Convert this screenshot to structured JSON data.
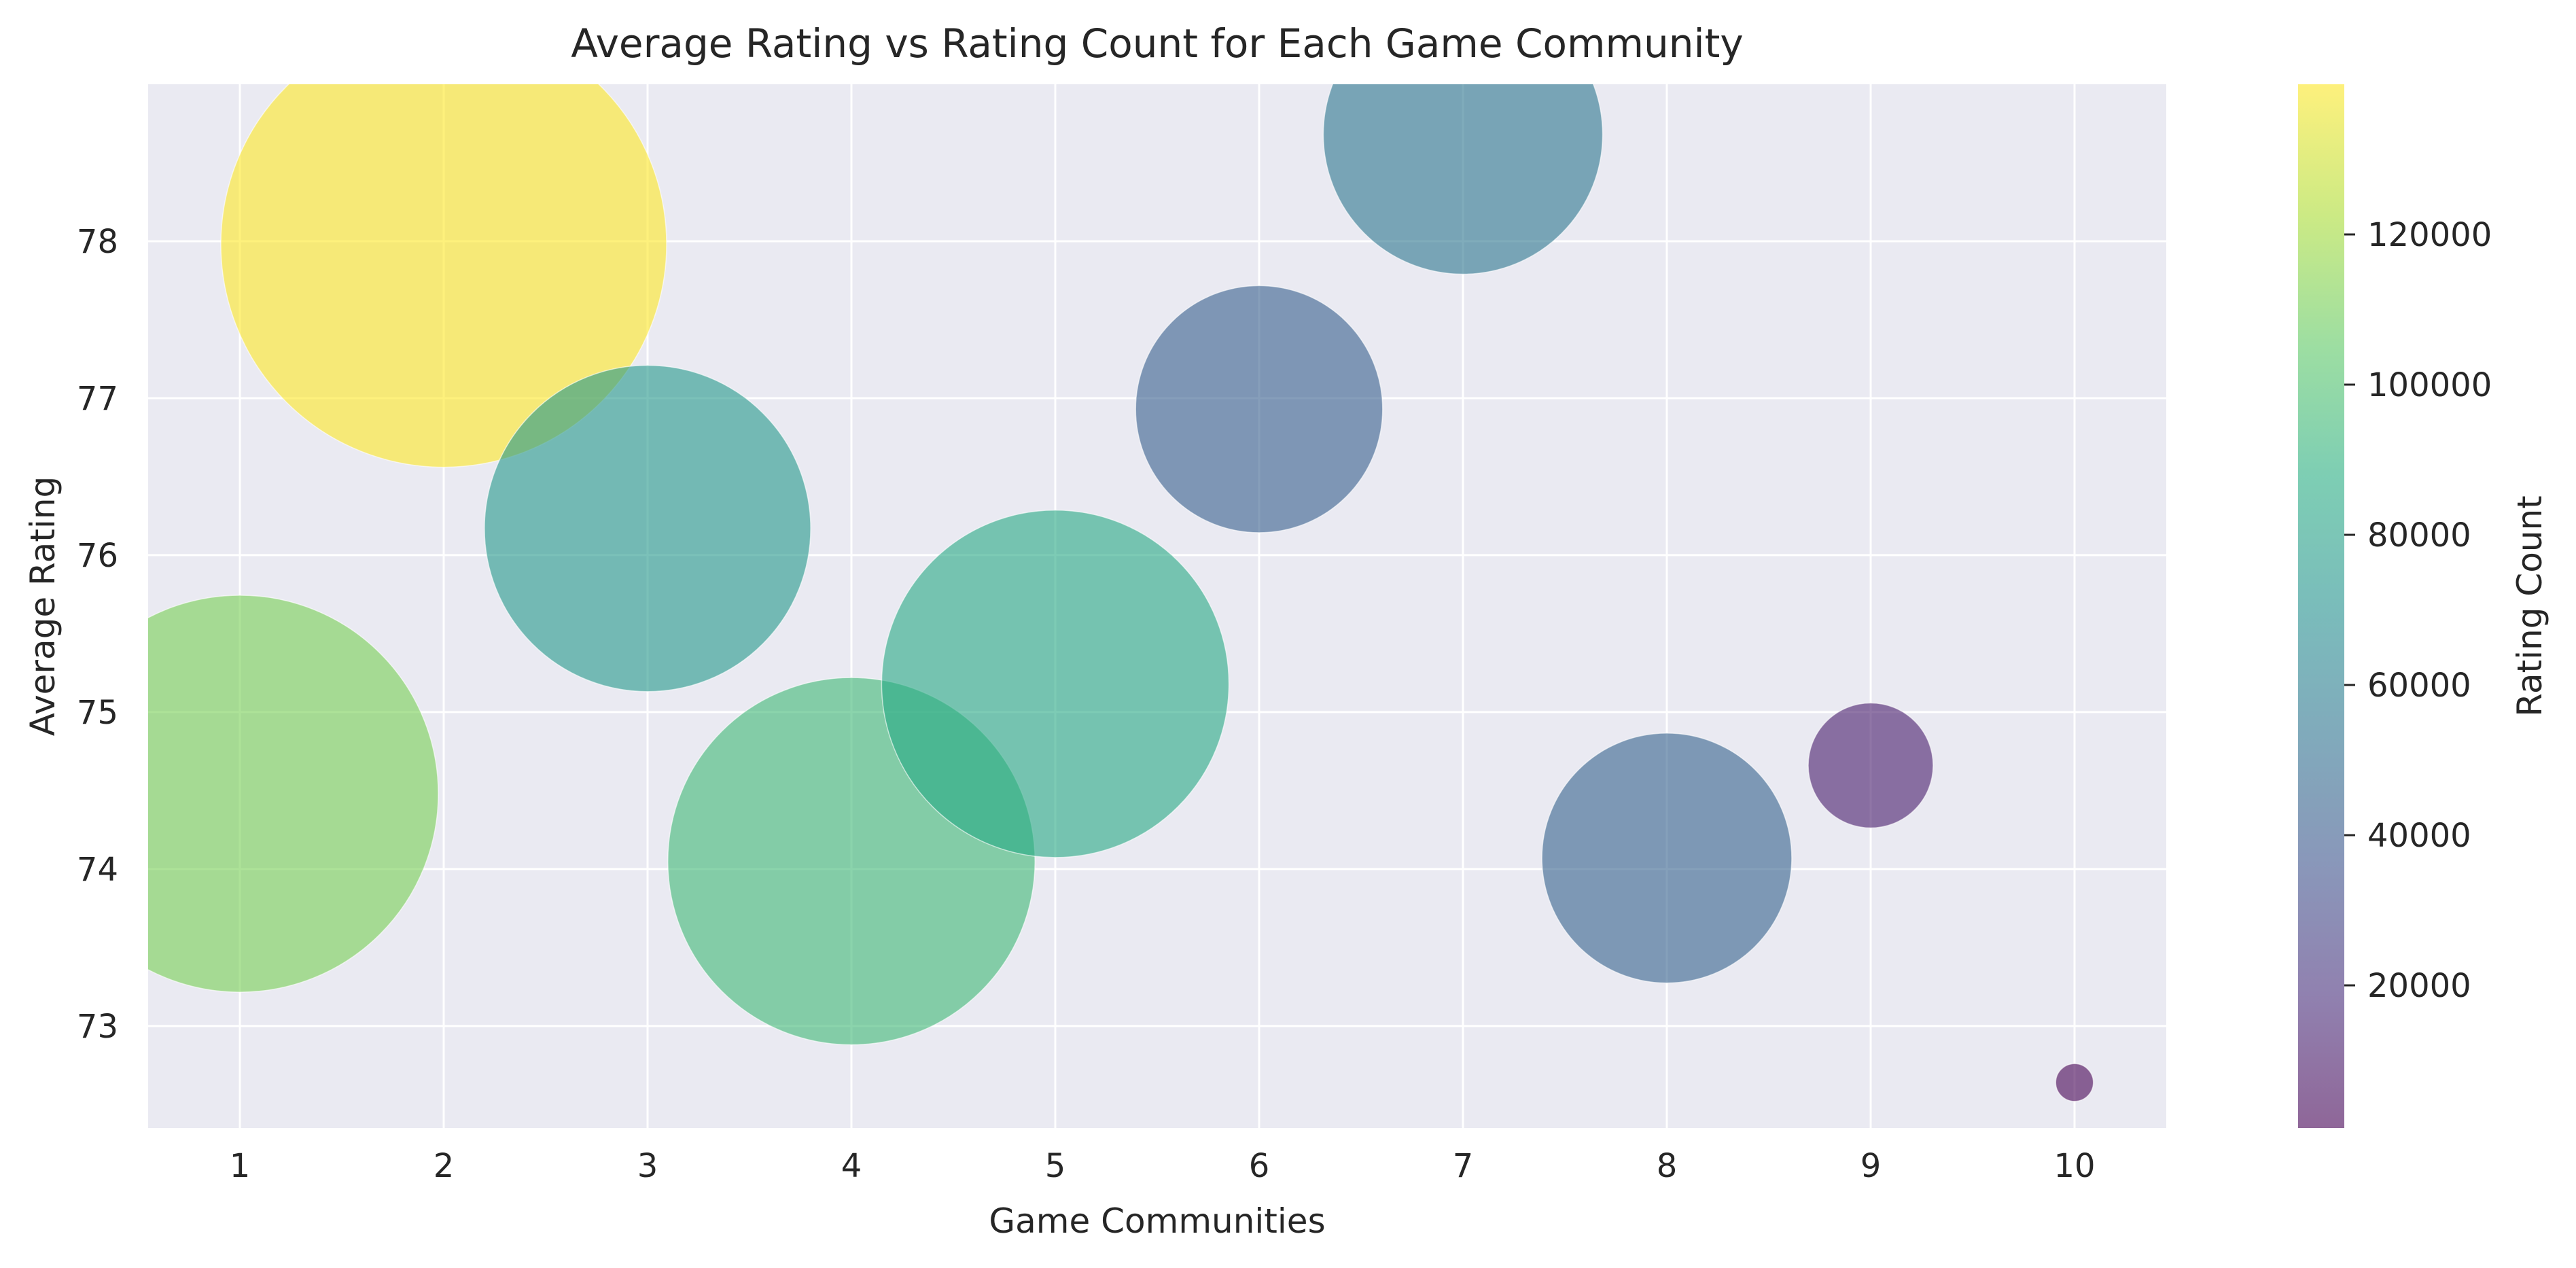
{
  "chart_data": {
    "type": "scatter",
    "title": "Average Rating vs Rating Count for Each Game Community",
    "xlabel": "Game Communities",
    "ylabel": "Average Rating",
    "xlim": [
      0.55,
      10.45
    ],
    "ylim": [
      72.35,
      79.0
    ],
    "xticks": [
      1,
      2,
      3,
      4,
      5,
      6,
      7,
      8,
      9,
      10
    ],
    "yticks": [
      73,
      74,
      75,
      76,
      77,
      78
    ],
    "grid": true,
    "colorbar": {
      "label": "Rating Count",
      "range": [
        1000,
        140000
      ],
      "ticks": [
        20000,
        40000,
        60000,
        80000,
        100000,
        120000
      ],
      "colormap": "viridis"
    },
    "points": [
      {
        "x": 1,
        "y": 74.48,
        "count": 111000
      },
      {
        "x": 2,
        "y": 77.98,
        "count": 140000
      },
      {
        "x": 3,
        "y": 76.17,
        "count": 75000
      },
      {
        "x": 4,
        "y": 74.05,
        "count": 95000
      },
      {
        "x": 5,
        "y": 75.18,
        "count": 85000
      },
      {
        "x": 6,
        "y": 76.93,
        "count": 43000
      },
      {
        "x": 7,
        "y": 78.68,
        "count": 55000
      },
      {
        "x": 8,
        "y": 74.07,
        "count": 44000
      },
      {
        "x": 9,
        "y": 74.66,
        "count": 11000
      },
      {
        "x": 10,
        "y": 72.64,
        "count": 1000
      }
    ]
  }
}
